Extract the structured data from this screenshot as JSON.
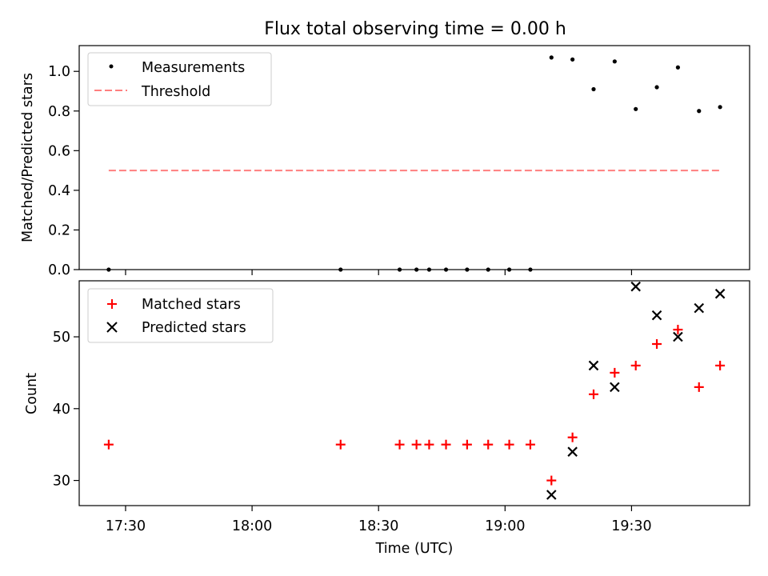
{
  "title": "Flux total observing time = 0.00 h",
  "x_axis": {
    "label": "Time (UTC)",
    "ticks": [
      "17:30",
      "18:00",
      "18:30",
      "19:00",
      "19:30"
    ],
    "tick_minutes": [
      1050,
      1080,
      1110,
      1140,
      1170
    ]
  },
  "colors": {
    "measurements": "#000000",
    "threshold": "#ff7f7f",
    "matched": "#ff0000",
    "predicted": "#000000"
  },
  "chart_data": [
    {
      "type": "scatter",
      "ylabel": "Matched/Predicted stars",
      "xlim": [
        "17:19",
        "19:58"
      ],
      "ylim": [
        0,
        1.13
      ],
      "yticks": [
        "0.0",
        "0.2",
        "0.4",
        "0.6",
        "0.8",
        "1.0"
      ],
      "legend_position": "upper-left",
      "legend": [
        "Measurements",
        "Threshold"
      ],
      "series": [
        {
          "name": "Measurements",
          "marker": "dot",
          "points": [
            {
              "x": "17:26",
              "y": 0.0
            },
            {
              "x": "18:21",
              "y": 0.0
            },
            {
              "x": "18:35",
              "y": 0.0
            },
            {
              "x": "18:39",
              "y": 0.0
            },
            {
              "x": "18:42",
              "y": 0.0
            },
            {
              "x": "18:46",
              "y": 0.0
            },
            {
              "x": "18:51",
              "y": 0.0
            },
            {
              "x": "18:56",
              "y": 0.0
            },
            {
              "x": "19:01",
              "y": 0.0
            },
            {
              "x": "19:06",
              "y": 0.0
            },
            {
              "x": "19:11",
              "y": 1.07
            },
            {
              "x": "19:16",
              "y": 1.06
            },
            {
              "x": "19:21",
              "y": 0.91
            },
            {
              "x": "19:26",
              "y": 1.05
            },
            {
              "x": "19:31",
              "y": 0.81
            },
            {
              "x": "19:36",
              "y": 0.92
            },
            {
              "x": "19:41",
              "y": 1.02
            },
            {
              "x": "19:46",
              "y": 0.8
            },
            {
              "x": "19:51",
              "y": 0.82
            }
          ]
        },
        {
          "name": "Threshold",
          "marker": "dashed-line",
          "points": [
            {
              "x": "17:26",
              "y": 0.5
            },
            {
              "x": "19:51",
              "y": 0.5
            }
          ]
        }
      ]
    },
    {
      "type": "scatter",
      "xlabel": "Time (UTC)",
      "ylabel": "Count",
      "xlim": [
        "17:19",
        "19:58"
      ],
      "ylim": [
        26.5,
        57.8
      ],
      "yticks": [
        "30",
        "40",
        "50"
      ],
      "legend_position": "upper-left",
      "legend": [
        "Matched stars",
        "Predicted stars"
      ],
      "series": [
        {
          "name": "Matched stars",
          "marker": "plus",
          "points": [
            {
              "x": "17:26",
              "y": 35
            },
            {
              "x": "18:21",
              "y": 35
            },
            {
              "x": "18:35",
              "y": 35
            },
            {
              "x": "18:39",
              "y": 35
            },
            {
              "x": "18:42",
              "y": 35
            },
            {
              "x": "18:46",
              "y": 35
            },
            {
              "x": "18:51",
              "y": 35
            },
            {
              "x": "18:56",
              "y": 35
            },
            {
              "x": "19:01",
              "y": 35
            },
            {
              "x": "19:06",
              "y": 35
            },
            {
              "x": "19:11",
              "y": 30
            },
            {
              "x": "19:16",
              "y": 36
            },
            {
              "x": "19:21",
              "y": 42
            },
            {
              "x": "19:26",
              "y": 45
            },
            {
              "x": "19:31",
              "y": 46
            },
            {
              "x": "19:36",
              "y": 49
            },
            {
              "x": "19:41",
              "y": 51
            },
            {
              "x": "19:46",
              "y": 43
            },
            {
              "x": "19:51",
              "y": 46
            }
          ]
        },
        {
          "name": "Predicted stars",
          "marker": "x",
          "points": [
            {
              "x": "19:11",
              "y": 28
            },
            {
              "x": "19:16",
              "y": 34
            },
            {
              "x": "19:21",
              "y": 46
            },
            {
              "x": "19:26",
              "y": 43
            },
            {
              "x": "19:31",
              "y": 57
            },
            {
              "x": "19:36",
              "y": 53
            },
            {
              "x": "19:41",
              "y": 50
            },
            {
              "x": "19:46",
              "y": 54
            },
            {
              "x": "19:51",
              "y": 56
            }
          ]
        }
      ]
    }
  ]
}
